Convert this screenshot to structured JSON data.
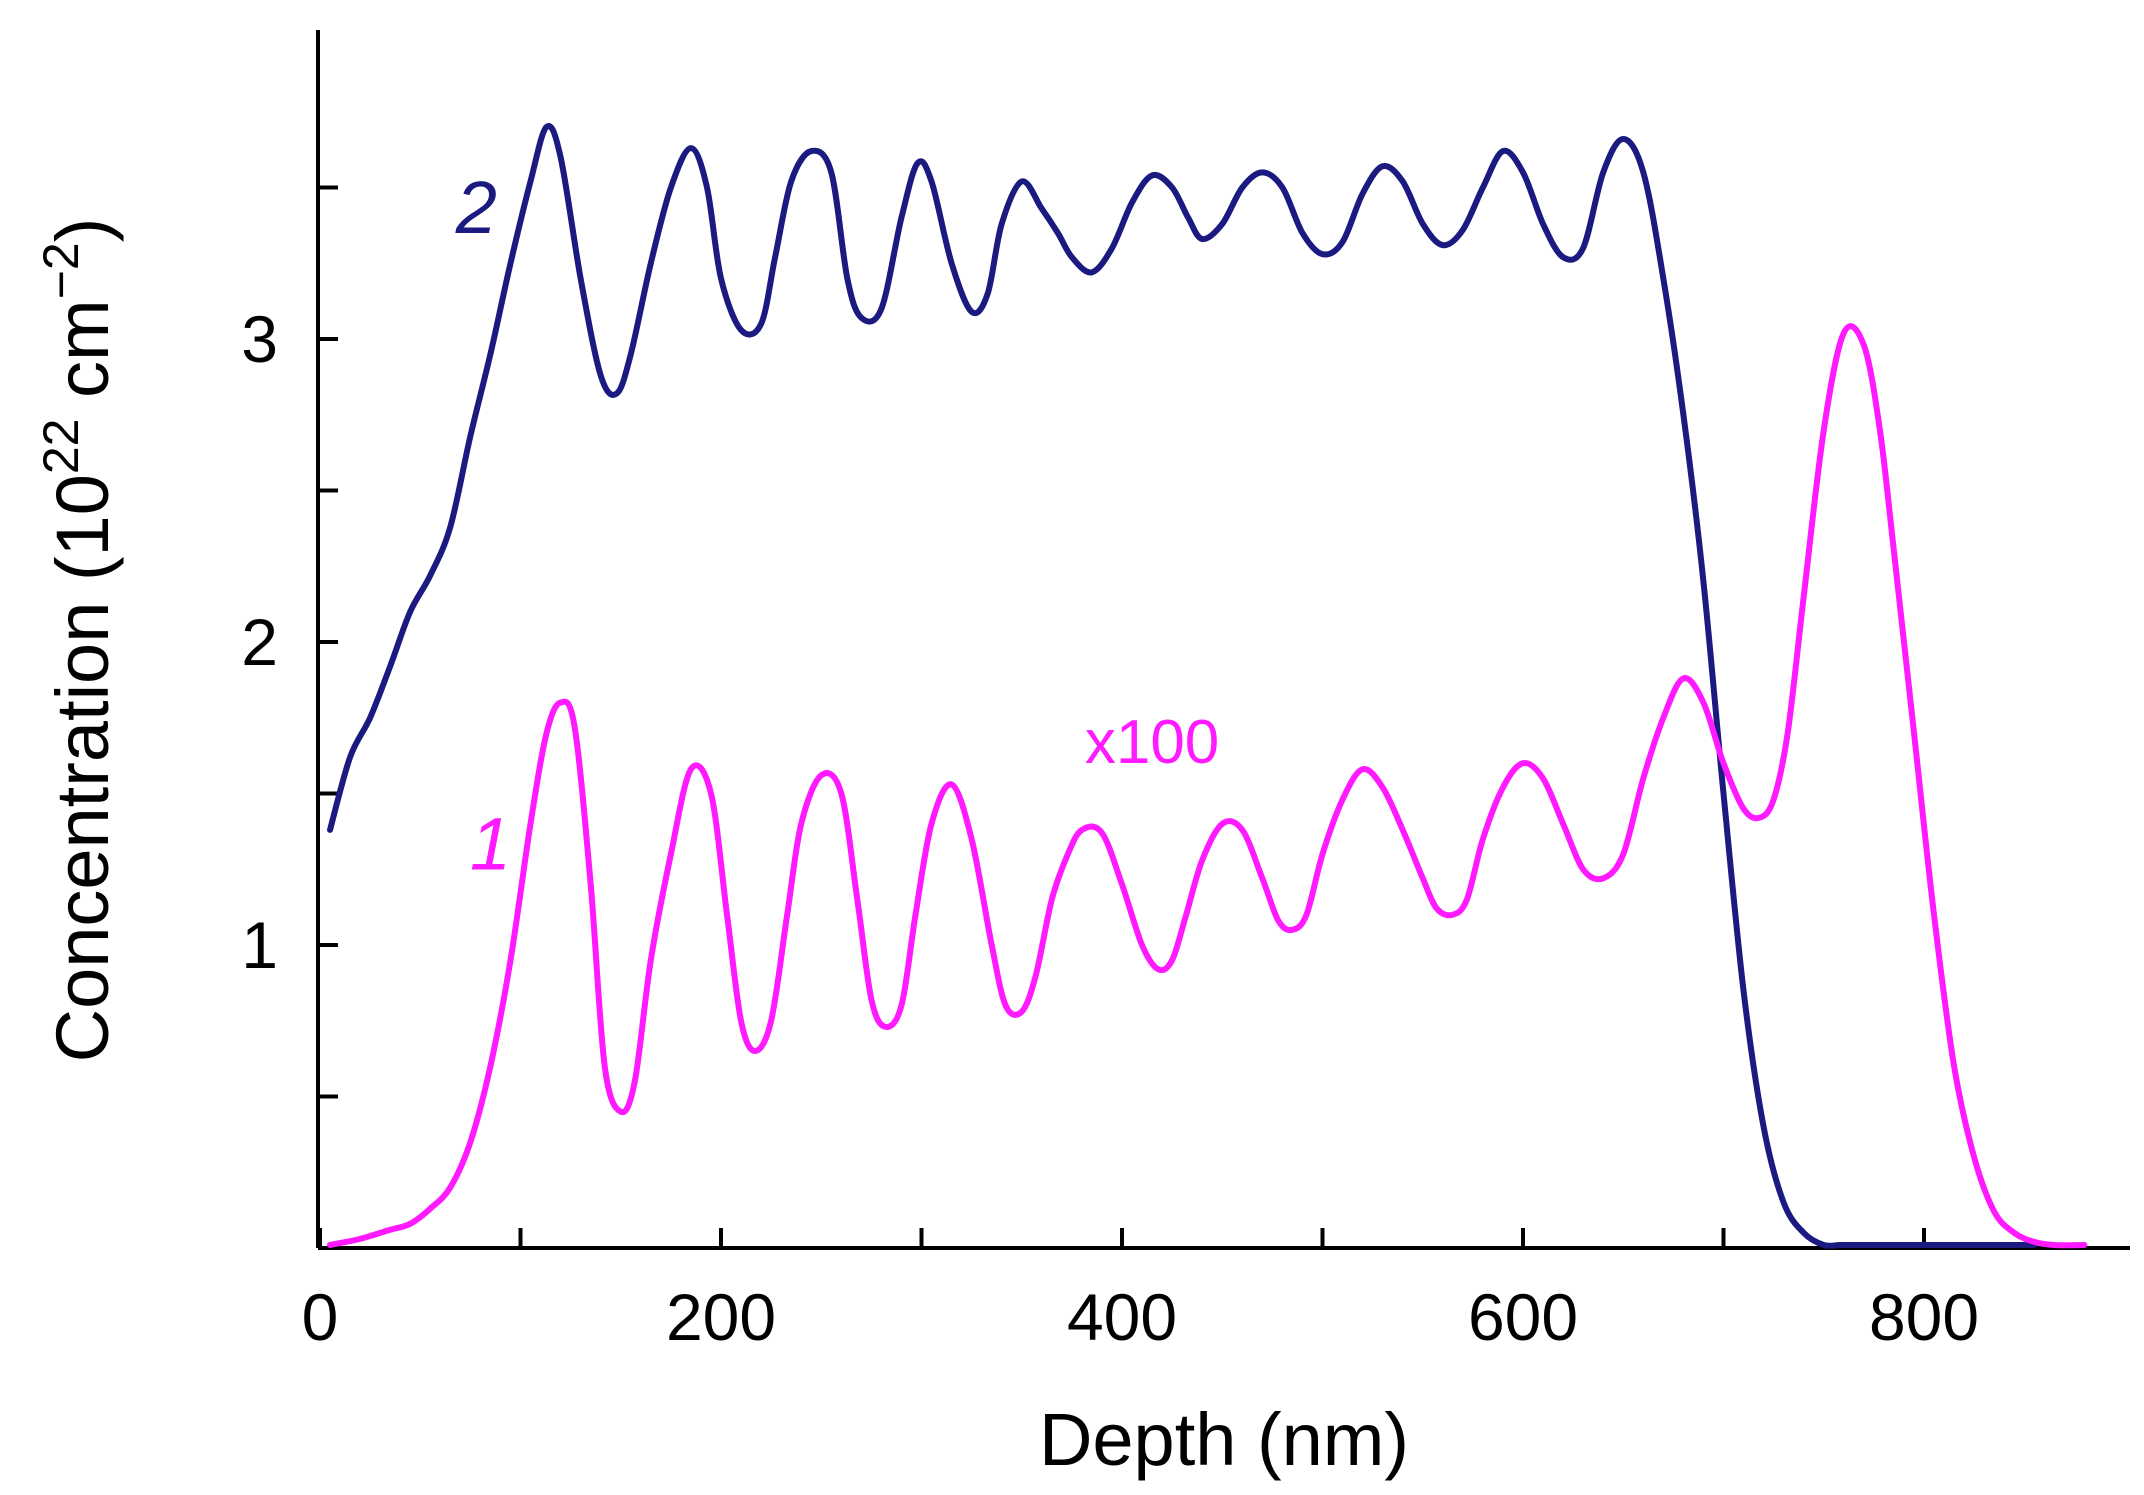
{
  "chart_data": {
    "type": "line",
    "title": "",
    "xlabel": "Depth (nm)",
    "ylabel": {
      "prefix": "Concentration (10",
      "exp1": "22",
      "mid": " cm",
      "exp2": "−2",
      "suffix": ")"
    },
    "xlim": [
      0,
      900
    ],
    "ylim": [
      0,
      4
    ],
    "xticks": [
      0,
      200,
      400,
      600,
      800
    ],
    "xticks_minor": [
      100,
      300,
      500,
      700
    ],
    "yticks": [
      1,
      2,
      3
    ],
    "yticks_minor": [
      0.5,
      1.5,
      2.5,
      3.5
    ],
    "series": [
      {
        "name": "2",
        "label": "2",
        "color": "#1a1a80",
        "x": [
          5,
          15,
          25,
          35,
          45,
          55,
          65,
          75,
          85,
          95,
          105,
          113,
          120,
          130,
          140,
          148,
          155,
          165,
          175,
          185,
          193,
          200,
          210,
          220,
          227,
          235,
          245,
          255,
          263,
          270,
          280,
          290,
          298,
          305,
          315,
          325,
          333,
          340,
          350,
          360,
          368,
          375,
          385,
          395,
          405,
          415,
          425,
          433,
          440,
          450,
          460,
          470,
          480,
          490,
          500,
          510,
          520,
          530,
          540,
          550,
          560,
          570,
          580,
          590,
          600,
          610,
          620,
          630,
          640,
          650,
          660,
          670,
          680,
          690,
          700,
          710,
          720,
          730,
          740,
          750,
          758,
          765,
          775,
          785,
          795,
          805,
          815,
          825,
          835,
          845,
          855
        ],
        "y": [
          1.38,
          1.62,
          1.75,
          1.92,
          2.1,
          2.22,
          2.38,
          2.68,
          2.95,
          3.25,
          3.52,
          3.7,
          3.6,
          3.2,
          2.88,
          2.82,
          2.95,
          3.25,
          3.5,
          3.63,
          3.5,
          3.2,
          3.03,
          3.05,
          3.27,
          3.52,
          3.62,
          3.55,
          3.2,
          3.07,
          3.1,
          3.4,
          3.58,
          3.52,
          3.25,
          3.09,
          3.15,
          3.38,
          3.52,
          3.43,
          3.35,
          3.27,
          3.22,
          3.3,
          3.45,
          3.54,
          3.5,
          3.4,
          3.33,
          3.38,
          3.5,
          3.55,
          3.5,
          3.35,
          3.28,
          3.32,
          3.48,
          3.57,
          3.52,
          3.38,
          3.31,
          3.36,
          3.5,
          3.62,
          3.55,
          3.38,
          3.27,
          3.3,
          3.55,
          3.66,
          3.55,
          3.2,
          2.75,
          2.2,
          1.5,
          0.85,
          0.4,
          0.15,
          0.05,
          0.01,
          0.01,
          0.01,
          0.01,
          0.01,
          0.01,
          0.01,
          0.01,
          0.01,
          0.01,
          0.01,
          0.01
        ]
      },
      {
        "name": "1",
        "label": "1",
        "color": "#ff1aff",
        "x": [
          5,
          20,
          35,
          45,
          55,
          65,
          75,
          85,
          95,
          105,
          113,
          120,
          127,
          135,
          142,
          150,
          157,
          165,
          175,
          185,
          195,
          203,
          210,
          217,
          225,
          233,
          240,
          250,
          260,
          268,
          275,
          282,
          290,
          297,
          305,
          315,
          325,
          335,
          342,
          350,
          357,
          365,
          373,
          380,
          390,
          400,
          410,
          418,
          425,
          432,
          440,
          450,
          460,
          470,
          478,
          485,
          492,
          500,
          510,
          520,
          530,
          540,
          550,
          557,
          565,
          572,
          580,
          590,
          600,
          610,
          620,
          630,
          640,
          650,
          660,
          670,
          680,
          690,
          700,
          710,
          718,
          725,
          732,
          740,
          750,
          760,
          770,
          778,
          785,
          795,
          805,
          815,
          825,
          835,
          845,
          855,
          865,
          880
        ],
        "y": [
          0.01,
          0.03,
          0.06,
          0.08,
          0.13,
          0.2,
          0.35,
          0.6,
          0.95,
          1.4,
          1.7,
          1.8,
          1.72,
          1.2,
          0.6,
          0.45,
          0.55,
          0.95,
          1.3,
          1.58,
          1.5,
          1.1,
          0.75,
          0.65,
          0.75,
          1.1,
          1.4,
          1.56,
          1.5,
          1.15,
          0.82,
          0.73,
          0.8,
          1.1,
          1.4,
          1.53,
          1.35,
          1.0,
          0.8,
          0.78,
          0.9,
          1.15,
          1.3,
          1.38,
          1.37,
          1.2,
          1.0,
          0.92,
          0.95,
          1.1,
          1.28,
          1.4,
          1.38,
          1.22,
          1.08,
          1.05,
          1.1,
          1.3,
          1.48,
          1.58,
          1.52,
          1.38,
          1.22,
          1.12,
          1.1,
          1.15,
          1.35,
          1.52,
          1.6,
          1.55,
          1.4,
          1.25,
          1.22,
          1.3,
          1.55,
          1.75,
          1.88,
          1.8,
          1.6,
          1.45,
          1.42,
          1.48,
          1.7,
          2.15,
          2.7,
          3.02,
          2.98,
          2.7,
          2.3,
          1.7,
          1.1,
          0.6,
          0.3,
          0.12,
          0.05,
          0.02,
          0.01,
          0.01
        ]
      }
    ],
    "annotations": [
      {
        "text": "2",
        "color": "#1a1a80",
        "x": 78,
        "y": 3.35,
        "style": "italic"
      },
      {
        "text": "1",
        "color": "#ff1aff",
        "x": 85,
        "y": 1.25,
        "style": "italic"
      },
      {
        "text": "x100",
        "color": "#ff1aff",
        "x": 415,
        "y": 1.6,
        "style": "normal"
      }
    ]
  }
}
